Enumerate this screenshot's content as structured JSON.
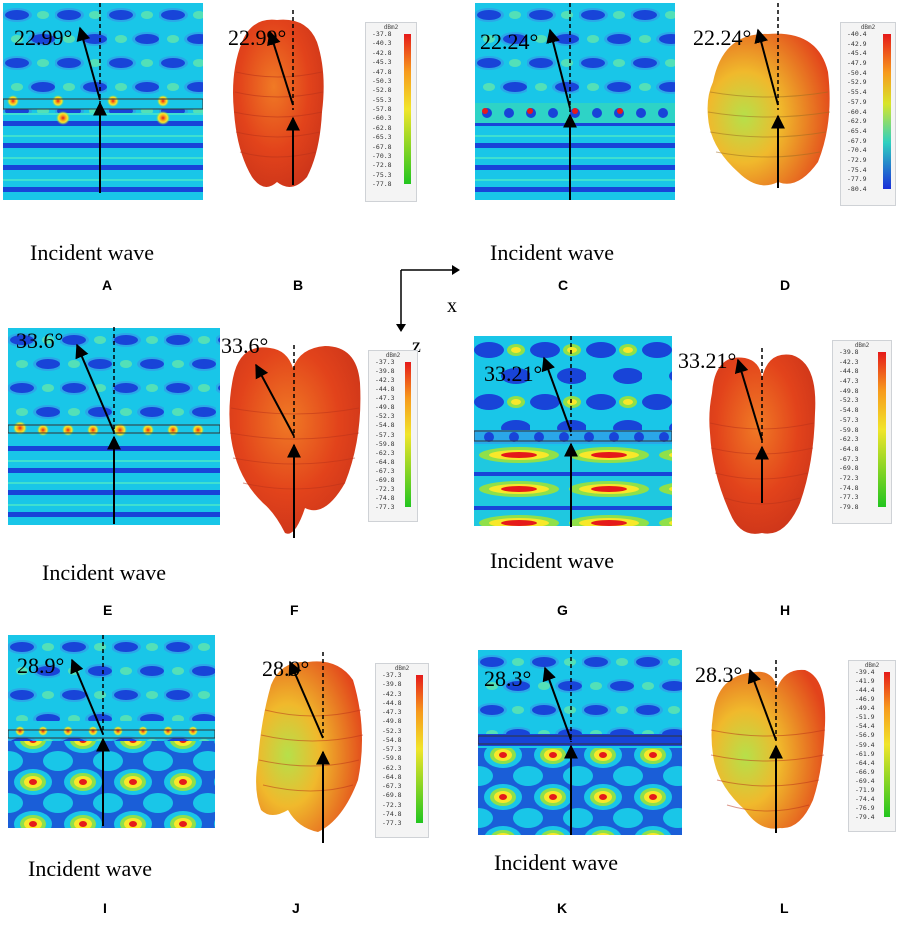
{
  "incident_label": "Incident wave",
  "axes": {
    "x": "x",
    "z": "z"
  },
  "legend_unit": "dBm2",
  "panels": {
    "A": "A",
    "B": "B",
    "C": "C",
    "D": "D",
    "E": "E",
    "F": "F",
    "G": "G",
    "H": "H",
    "I": "I",
    "J": "J",
    "K": "K",
    "L": "L"
  },
  "angles": {
    "A": "22.99°",
    "B": "22.99°",
    "C": "22.24°",
    "D": "22.24°",
    "E": "33.6°",
    "F": "33.6°",
    "G": "33.21°",
    "H": "33.21°",
    "I": "28.9°",
    "J": "28.9°",
    "K": "28.3°",
    "L": "28.3°"
  },
  "legends": {
    "B": [
      "-37.8",
      "-40.3",
      "-42.8",
      "-45.3",
      "-47.8",
      "-50.3",
      "-52.8",
      "-55.3",
      "-57.8",
      "-60.3",
      "-62.8",
      "-65.3",
      "-67.8",
      "-70.3",
      "-72.8",
      "-75.3",
      "-77.8"
    ],
    "D": [
      "-40.4",
      "-42.9",
      "-45.4",
      "-47.9",
      "-50.4",
      "-52.9",
      "-55.4",
      "-57.9",
      "-60.4",
      "-62.9",
      "-65.4",
      "-67.9",
      "-70.4",
      "-72.9",
      "-75.4",
      "-77.9",
      "-80.4"
    ],
    "F": [
      "-37.3",
      "-39.8",
      "-42.3",
      "-44.8",
      "-47.3",
      "-49.8",
      "-52.3",
      "-54.8",
      "-57.3",
      "-59.8",
      "-62.3",
      "-64.8",
      "-67.3",
      "-69.8",
      "-72.3",
      "-74.8",
      "-77.3"
    ],
    "H": [
      "-39.8",
      "-42.3",
      "-44.8",
      "-47.3",
      "-49.8",
      "-52.3",
      "-54.8",
      "-57.3",
      "-59.8",
      "-62.3",
      "-64.8",
      "-67.3",
      "-69.8",
      "-72.3",
      "-74.8",
      "-77.3",
      "-79.8"
    ],
    "J": [
      "-37.3",
      "-39.8",
      "-42.3",
      "-44.8",
      "-47.3",
      "-49.8",
      "-52.3",
      "-54.8",
      "-57.3",
      "-59.8",
      "-62.3",
      "-64.8",
      "-67.3",
      "-69.8",
      "-72.3",
      "-74.8",
      "-77.3"
    ],
    "L": [
      "-39.4",
      "-41.9",
      "-44.4",
      "-46.9",
      "-49.4",
      "-51.9",
      "-54.4",
      "-56.9",
      "-59.4",
      "-61.9",
      "-64.4",
      "-66.9",
      "-69.4",
      "-71.9",
      "-74.4",
      "-76.9",
      "-79.4"
    ]
  },
  "colors": {
    "field_bg": "#19c6e8",
    "field_blob": "#1844d8",
    "field_hot": "#f8e82a",
    "field_hot_core": "#e51a1a",
    "scatter_main": "#e2431b",
    "scatter_light": "#f48a2a",
    "scatter_green": "#8fd13a"
  }
}
